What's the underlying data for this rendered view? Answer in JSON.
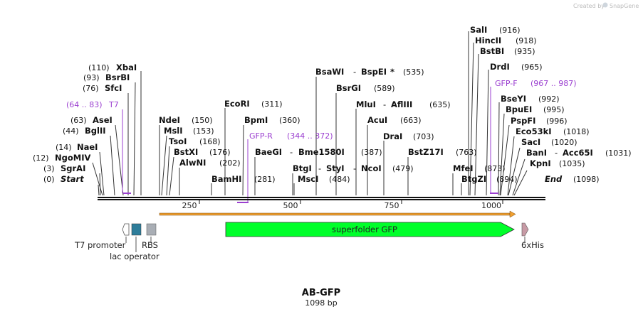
{
  "credit": {
    "prefix": "Created by",
    "brand": "SnapGene"
  },
  "title": "AB-GFP",
  "length_label": "1098 bp",
  "sites": {
    "sali": {
      "name": "SalI",
      "pos": "(916)"
    },
    "hincii": {
      "name": "HincII",
      "pos": "(918)"
    },
    "bstbi": {
      "name": "BstBI",
      "pos": "(935)"
    },
    "drdi": {
      "name": "DrdI",
      "pos": "(965)"
    },
    "bseyi": {
      "name": "BseYI",
      "pos": "(992)"
    },
    "bpuei": {
      "name": "BpuEI",
      "pos": "(995)"
    },
    "pspfi": {
      "name": "PspFI",
      "pos": "(996)"
    },
    "eco53ki": {
      "name": "Eco53kI",
      "pos": "(1018)"
    },
    "saci": {
      "name": "SacI",
      "pos": "(1020)"
    },
    "bani": {
      "name": "BanI",
      "name2": "Acc65I",
      "pos": "(1031)"
    },
    "kpni": {
      "name": "KpnI",
      "pos": "(1035)"
    },
    "end": {
      "name": "End",
      "pos": "(1098)"
    },
    "xbai": {
      "name": "XbaI",
      "pos": "(110)"
    },
    "bsrbi": {
      "name": "BsrBI",
      "pos": "(93)"
    },
    "sfci": {
      "name": "SfcI",
      "pos": "(76)"
    },
    "asei": {
      "name": "AseI",
      "pos": "(63)"
    },
    "bglii": {
      "name": "BglII",
      "pos": "(44)"
    },
    "naei": {
      "name": "NaeI",
      "pos": "(14)"
    },
    "ngomiv": {
      "name": "NgoMIV",
      "pos": "(12)"
    },
    "sgrai": {
      "name": "SgrAI",
      "pos": "(3)"
    },
    "start": {
      "name": "Start",
      "pos": "(0)"
    },
    "ndei": {
      "name": "NdeI",
      "pos": "(150)"
    },
    "msli": {
      "name": "MslI",
      "pos": "(153)"
    },
    "tsoi": {
      "name": "TsoI",
      "pos": "(168)"
    },
    "bstxi": {
      "name": "BstXI",
      "pos": "(176)"
    },
    "alwni": {
      "name": "AlwNI",
      "pos": "(202)"
    },
    "ecori": {
      "name": "EcoRI",
      "pos": "(311)"
    },
    "bpmi": {
      "name": "BpmI",
      "pos": "(360)"
    },
    "bamhi": {
      "name": "BamHI",
      "pos": "(281)"
    },
    "bsawi": {
      "name": "BsaWI",
      "name2": "BspEI",
      "star": "*",
      "pos": "(535)"
    },
    "bsrgi": {
      "name": "BsrGI",
      "pos": "(589)"
    },
    "mlui": {
      "name": "MluI",
      "name2": "AflIII",
      "pos": "(635)"
    },
    "acui": {
      "name": "AcuI",
      "pos": "(663)"
    },
    "drai": {
      "name": "DraI",
      "pos": "(703)"
    },
    "baegi": {
      "name": "BaeGI",
      "name2": "Bme1580I",
      "pos": "(387)"
    },
    "btgi": {
      "name": "BtgI",
      "name2": "StyI",
      "name3": "NcoI",
      "pos": "(479)"
    },
    "msci": {
      "name": "MscI",
      "pos": "(484)"
    },
    "bstz17i": {
      "name": "BstZ17I",
      "pos": "(763)"
    },
    "mfei": {
      "name": "MfeI",
      "pos": "(873)"
    },
    "btgzi": {
      "name": "BtgZI",
      "pos": "(894)"
    },
    "dash": "-"
  },
  "primers": {
    "t7": {
      "name": "T7",
      "range": "(64 .. 83)"
    },
    "gfp_r": {
      "name": "GFP-R",
      "range": "(344 .. 372)"
    },
    "gfp_f": {
      "name": "GFP-F",
      "range": "(967 .. 987)"
    }
  },
  "ticks": [
    "250",
    "500",
    "750",
    "1000"
  ],
  "features": {
    "t7_promoter": "T7 promoter",
    "lac_operator": "lac operator",
    "rbs": "RBS",
    "superfolder_gfp": "superfolder GFP",
    "his": "6xHis"
  },
  "colors": {
    "gfp": "#00ff2a",
    "primer": "#9b3fd0",
    "lac": "#2e7d9a",
    "rbs": "#a9aeb5",
    "his": "#c79aa5",
    "orf": "#f0a030"
  }
}
